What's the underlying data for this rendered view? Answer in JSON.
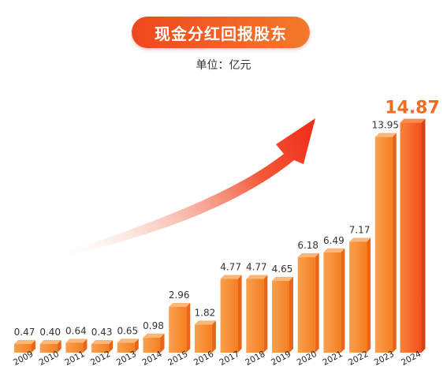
{
  "title": "现金分红回报股东",
  "unit": "单位：亿元",
  "colors": {
    "bar_front": "#f57f21",
    "bar_front_light": "#f9a04e",
    "bar_top": "#fbb77a",
    "bar_side": "#e8651a",
    "highlight_bar": "#f5591e",
    "highlight_label": "#f46a1e",
    "label_text": "#333333",
    "arrow": "#ef2f1c",
    "title_gradient_start": "#f0471d",
    "title_gradient_end": "#f57a2a"
  },
  "chart_data": {
    "type": "bar",
    "title": "现金分红回报股东",
    "unit": "单位：亿元",
    "categories": [
      "2009",
      "2010",
      "2011",
      "2012",
      "2013",
      "2014",
      "2015",
      "2016",
      "2017",
      "2018",
      "2019",
      "2020",
      "2021",
      "2022",
      "2023",
      "2024"
    ],
    "values": [
      0.47,
      0.4,
      0.64,
      0.43,
      0.65,
      0.98,
      2.96,
      1.82,
      4.77,
      4.77,
      4.65,
      6.18,
      6.49,
      7.17,
      13.95,
      14.87
    ],
    "value_labels": [
      "0.47",
      "0.40",
      "0.64",
      "0.43",
      "0.65",
      "0.98",
      "2.96",
      "1.82",
      "4.77",
      "4.77",
      "4.65",
      "6.18",
      "6.49",
      "7.17",
      "13.95",
      "14.87"
    ],
    "highlight_index": 15,
    "trend_arrow": true,
    "gridlines": false,
    "y_axis_visible": false
  }
}
